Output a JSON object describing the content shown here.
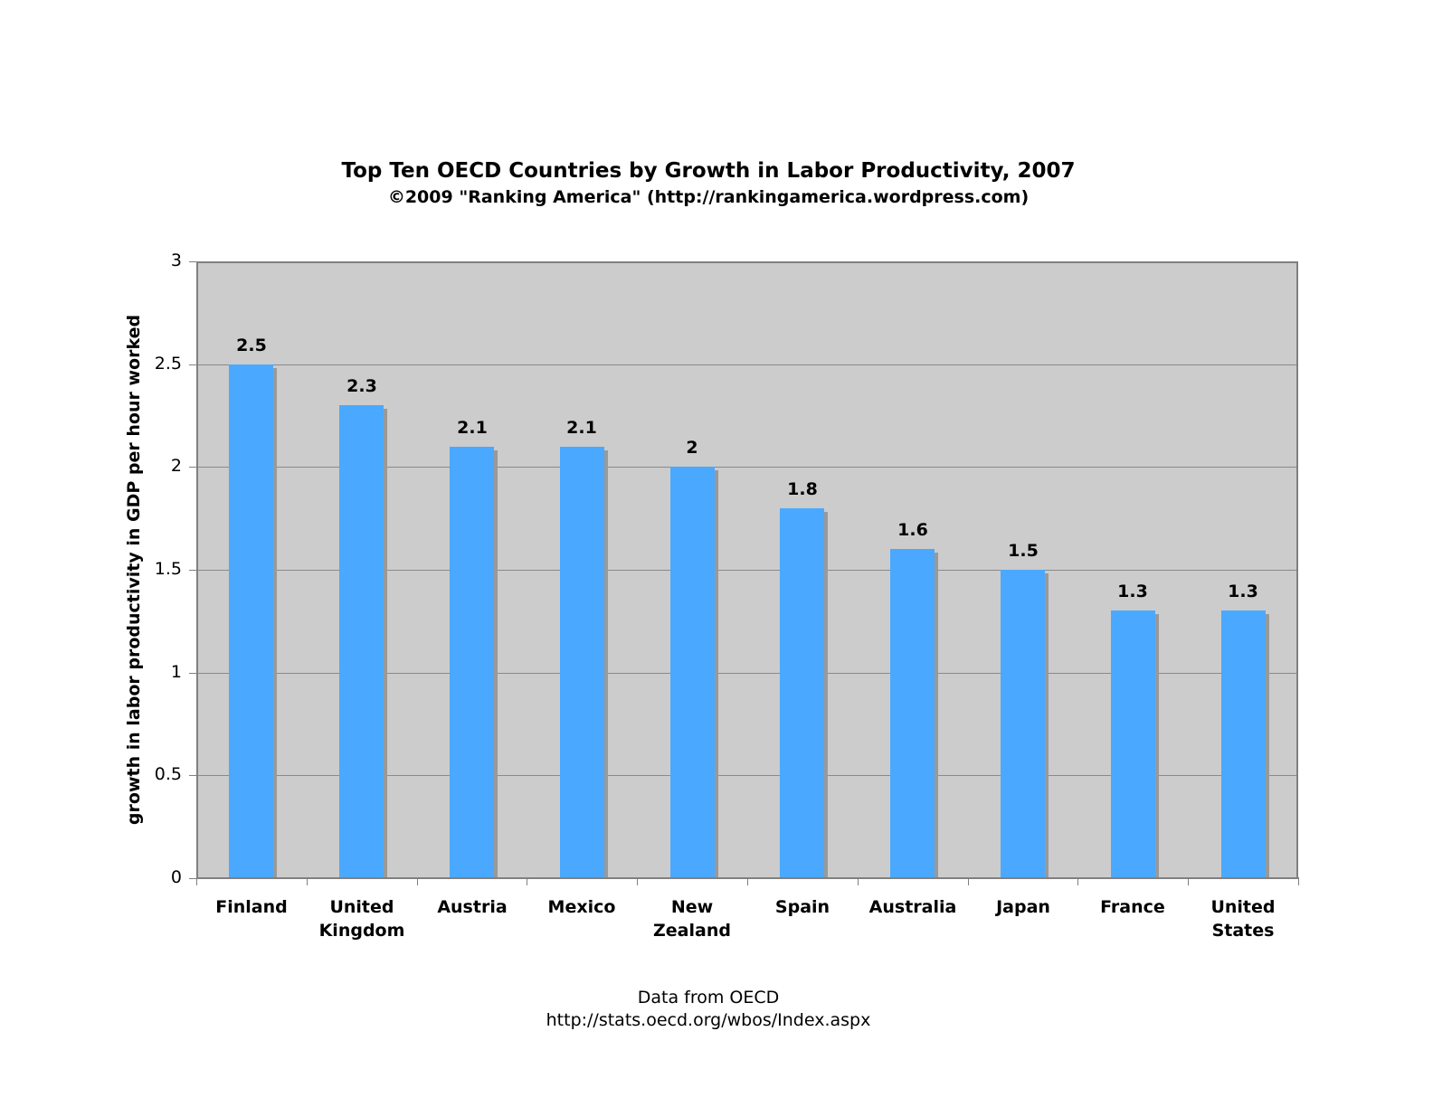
{
  "chart_data": {
    "type": "bar",
    "title": "Top Ten OECD Countries by Growth in Labor Productivity, 2007",
    "subtitle": "©2009 \"Ranking America\" (http://rankingamerica.wordpress.com)",
    "xlabel": "",
    "ylabel": "growth in labor productivity in GDP per hour worked",
    "ylim": [
      0,
      3
    ],
    "yticks": [
      "0",
      "0.5",
      "1",
      "1.5",
      "2",
      "2.5",
      "3"
    ],
    "grid": true,
    "legend": "none",
    "categories": [
      "Finland",
      "United Kingdom",
      "Austria",
      "Mexico",
      "New Zealand",
      "Spain",
      "Australia",
      "Japan",
      "France",
      "United States"
    ],
    "category_lines": [
      [
        "Finland"
      ],
      [
        "United",
        "Kingdom"
      ],
      [
        "Austria"
      ],
      [
        "Mexico"
      ],
      [
        "New",
        "Zealand"
      ],
      [
        "Spain"
      ],
      [
        "Australia"
      ],
      [
        "Japan"
      ],
      [
        "France"
      ],
      [
        "United",
        "States"
      ]
    ],
    "values": [
      2.5,
      2.3,
      2.1,
      2.1,
      2,
      1.8,
      1.6,
      1.5,
      1.3,
      1.3
    ],
    "value_labels": [
      "2.5",
      "2.3",
      "2.1",
      "2.1",
      "2",
      "1.8",
      "1.6",
      "1.5",
      "1.3",
      "1.3"
    ],
    "bar_color": "#4aa9ff",
    "plot_background": "#cccccc",
    "footer": [
      "Data from OECD",
      "http://stats.oecd.org/wbos/Index.aspx"
    ]
  }
}
